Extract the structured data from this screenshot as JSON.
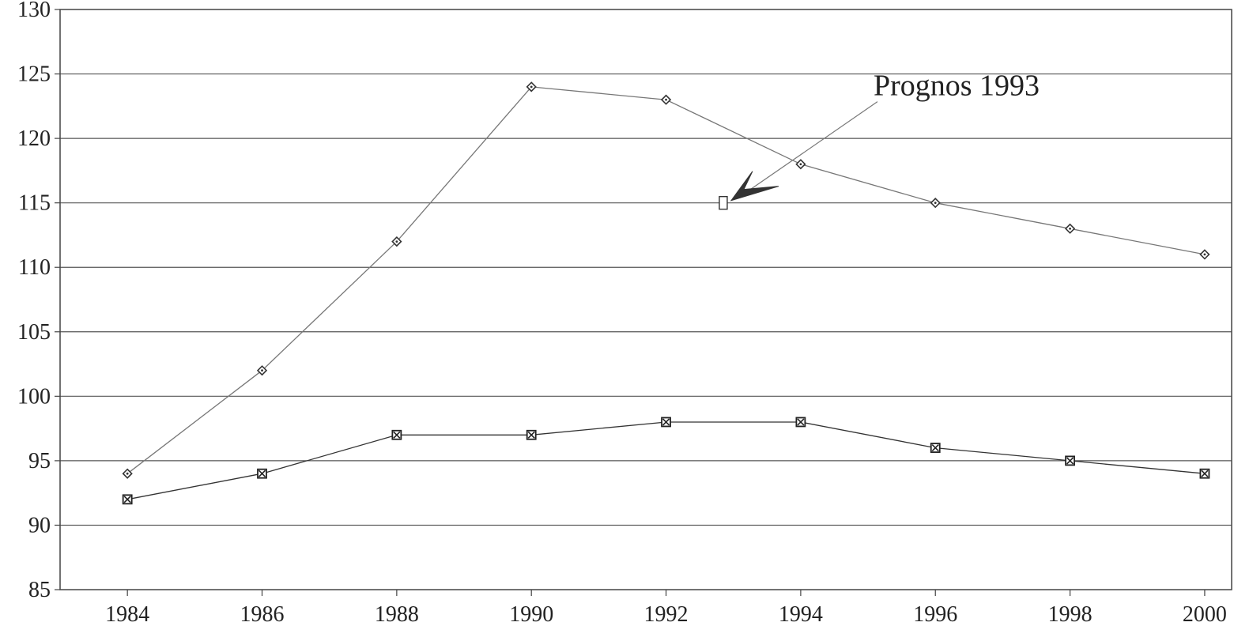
{
  "chart_data": {
    "type": "line",
    "x": [
      1984,
      1986,
      1988,
      1990,
      1992,
      1994,
      1996,
      1998,
      2000
    ],
    "xticks": [
      "1984",
      "1986",
      "1988",
      "1990",
      "1992",
      "1994",
      "1996",
      "1998",
      "2000"
    ],
    "xlim": [
      1983.0,
      2000.4
    ],
    "ylim": [
      85,
      130
    ],
    "yticks": [
      "85",
      "90",
      "95",
      "100",
      "105",
      "110",
      "115",
      "120",
      "125",
      "130"
    ],
    "yticks_values": [
      85,
      90,
      95,
      100,
      105,
      110,
      115,
      120,
      125,
      130
    ],
    "grid": true,
    "series": [
      {
        "marker": "diamond",
        "color": "#777777",
        "values": [
          94,
          102,
          112,
          124,
          123,
          118,
          115,
          113,
          111
        ]
      },
      {
        "marker": "crossed-square",
        "color": "#333333",
        "values": [
          92,
          94,
          97,
          97,
          98,
          98,
          96,
          95,
          94
        ]
      }
    ],
    "annotations": [
      {
        "text": "Prognos 1993",
        "point": {
          "x": 1992.85,
          "y": 115
        },
        "marker": "open-square",
        "arrow": true
      }
    ]
  }
}
